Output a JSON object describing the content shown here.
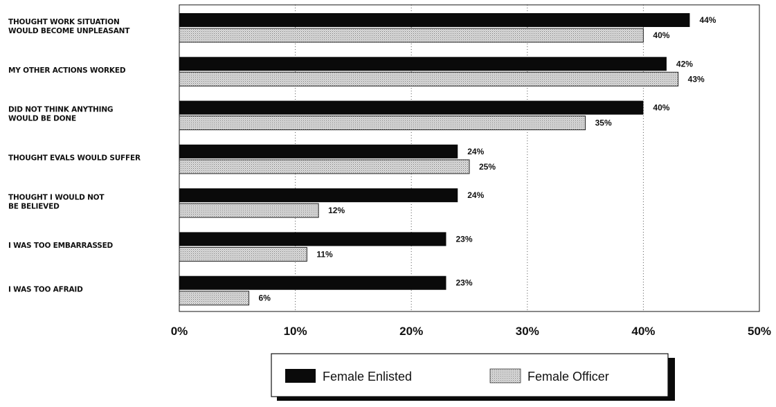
{
  "chart_data": {
    "type": "bar",
    "orientation": "horizontal",
    "categories": [
      [
        "THOUGHT WORK SITUATION",
        "WOULD BECOME UNPLEASANT"
      ],
      [
        "MY OTHER ACTIONS WORKED"
      ],
      [
        "DID NOT THINK ANYTHING",
        "WOULD BE DONE"
      ],
      [
        "THOUGHT EVALS WOULD SUFFER"
      ],
      [
        "THOUGHT I WOULD NOT",
        "BE BELIEVED"
      ],
      [
        "I WAS TOO EMBARRASSED"
      ],
      [
        "I WAS TOO AFRAID"
      ]
    ],
    "series": [
      {
        "name": "Female Enlisted",
        "values": [
          44,
          42,
          40,
          24,
          24,
          23,
          23
        ],
        "labels": [
          "44%",
          "42%",
          "40%",
          "24%",
          "24%",
          "23%",
          "23%"
        ],
        "color": "#0a0a0a"
      },
      {
        "name": "Female Officer",
        "values": [
          40,
          43,
          35,
          25,
          12,
          11,
          6
        ],
        "labels": [
          "40%",
          "43%",
          "35%",
          "25%",
          "12%",
          "11%",
          "6%"
        ],
        "color": "#d6d6d6"
      }
    ],
    "xlim": [
      0,
      50
    ],
    "xticks": [
      "0%",
      "10%",
      "20%",
      "30%",
      "40%",
      "50%"
    ],
    "grid": "vertical-dotted",
    "legend_position": "bottom-center"
  }
}
